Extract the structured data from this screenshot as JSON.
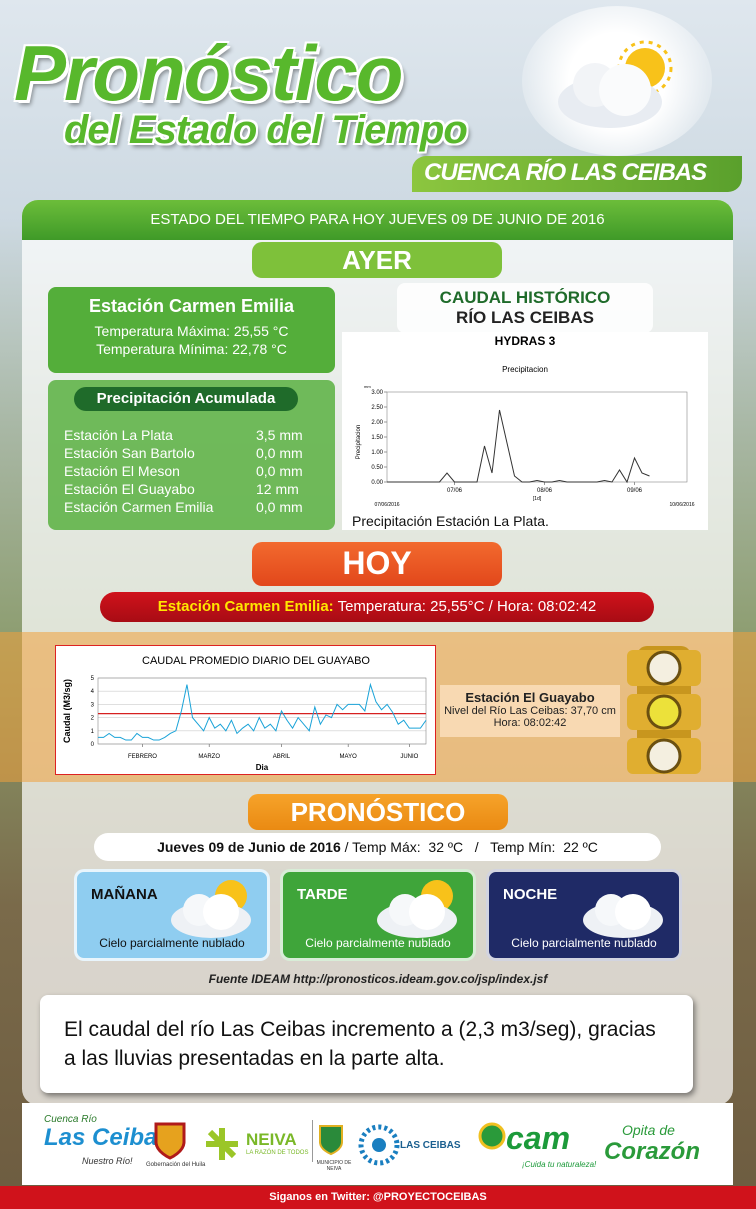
{
  "header": {
    "title": "Pronóstico",
    "subtitle": "del Estado del Tiempo",
    "basin": "CUENCA RÍO LAS CEIBAS"
  },
  "date_bar": "ESTADO DEL TIEMPO  PARA HOY  JUEVES 09 DE JUNIO  DE 2016",
  "ayer": {
    "label": "AYER",
    "station": "Estación Carmen Emilia",
    "temp_max": "Temperatura  Máxima: 25,55 °C",
    "temp_min": "Temperatura  Mínima: 22,78 °C",
    "precip_title": "Precipitación  Acumulada",
    "precip_rows": [
      [
        "Estación  La Plata",
        "3,5 mm"
      ],
      [
        "Estación San Bartolo",
        "0,0 mm"
      ],
      [
        "Estación El Meson",
        "0,0 mm"
      ],
      [
        "Estación El Guayabo",
        "12 mm"
      ],
      [
        "Estación Carmen Emilia",
        "0,0 mm"
      ]
    ]
  },
  "historico": {
    "title": "CAUDAL HISTÓRICO",
    "subtitle": "RÍO LAS CEIBAS",
    "caption": "Precipitación Estación La Plata."
  },
  "precip_chart": {
    "type": "line",
    "header": "HYDRAS 3",
    "title": "Precipitacion",
    "y_label": "Precipitacion",
    "unit": "mm",
    "values": [
      0,
      0,
      0,
      0,
      0,
      0,
      0,
      0,
      0.3,
      0,
      0,
      0,
      0,
      1.2,
      0.3,
      2.4,
      1.3,
      0.2,
      0,
      0,
      0.05,
      0,
      0,
      0.05,
      0,
      0,
      0,
      0,
      0,
      0.05,
      0,
      0.4,
      0,
      0.8,
      0.3,
      0.2
    ],
    "color": "#333333",
    "xlim": [
      0,
      40
    ],
    "xticks": [
      {
        "value": 9,
        "label": "07/06"
      },
      {
        "value": 21,
        "label": "08/06"
      },
      {
        "value": 33,
        "label": "09/06"
      }
    ],
    "x_start": "07/06/2016",
    "x_interval": "[1d]",
    "x_end": "10/06/2016",
    "ylim": [
      0,
      3
    ],
    "yticks": [
      {
        "value": 0,
        "label": "0.00"
      },
      {
        "value": 0.5,
        "label": "0.50"
      },
      {
        "value": 1,
        "label": "1.00"
      },
      {
        "value": 1.5,
        "label": "1.50"
      },
      {
        "value": 2,
        "label": "2.00"
      },
      {
        "value": 2.5,
        "label": "2.50"
      },
      {
        "value": 3,
        "label": "3.00"
      }
    ]
  },
  "hoy": {
    "label": "HOY",
    "station": "Estación Carmen Emilia:",
    "reading": "Temperatura:  25,55°C  / Hora:  08:02:42"
  },
  "caudal_chart": {
    "type": "line",
    "title": "CAUDAL PROMEDIO DIARIO DEL GUAYABO",
    "y_label": "Caudal (M3/sg)",
    "x_label": "Dia",
    "values": [
      0.5,
      0.5,
      0.8,
      0.5,
      0.5,
      0.3,
      0.3,
      0.8,
      0.5,
      0.5,
      0.3,
      0.3,
      0.5,
      0.8,
      1.0,
      2.5,
      4.5,
      2.0,
      1.5,
      1.0,
      2.0,
      1.2,
      1.5,
      1.0,
      1.8,
      0.8,
      1.2,
      1.5,
      1.0,
      2.0,
      1.2,
      1.5,
      1.0,
      2.5,
      1.8,
      1.2,
      2.0,
      1.5,
      1.0,
      2.8,
      1.5,
      2.2,
      2.0,
      3.0,
      2.6,
      3.0,
      3.0,
      3.0,
      2.5,
      4.5,
      3.2,
      2.6,
      3.0,
      2.4,
      1.5,
      1.8,
      1.2,
      1.2,
      1.2,
      1.8
    ],
    "color": "#1aa3d8",
    "reference_line": 2.3,
    "reference_color": "#d62020",
    "xlim": [
      0,
      59
    ],
    "xticks": [
      {
        "value": 8,
        "label": "FEBRERO"
      },
      {
        "value": 20,
        "label": "MARZO"
      },
      {
        "value": 33,
        "label": "ABRIL"
      },
      {
        "value": 45,
        "label": "MAYO"
      },
      {
        "value": 56,
        "label": "JUNIO"
      }
    ],
    "ylim": [
      0,
      5
    ],
    "yticks": [
      0,
      1,
      2,
      3,
      4,
      5
    ],
    "grid": true
  },
  "guayabo": {
    "station": "Estación  El Guayabo",
    "level": "Nivel del Río  Las Ceibas: 37,70 cm",
    "time": "Hora:  08:02:42"
  },
  "pronostico": {
    "label": "PRONÓSTICO",
    "date": "Jueves 09 de Junio de 2016",
    "temps": " / Temp Máx:  32 ºC   /   Temp Mín:  22 ºC",
    "periods": [
      {
        "name": "MAÑANA",
        "sky": "Cielo parcialmente nublado"
      },
      {
        "name": "TARDE",
        "sky": "Cielo parcialmente nublado"
      },
      {
        "name": "NOCHE",
        "sky": "Cielo parcialmente nublado"
      }
    ],
    "source": "Fuente IDEAM  http://pronosticos.ideam.gov.co/jsp/index.jsf"
  },
  "note": "El caudal del río Las Ceibas incremento a (2,3 m3/seg), gracias a las lluvias presentadas en la parte alta.",
  "logos": [
    "Cuenca Río",
    "Las Ceibas",
    "Nuestro Río!",
    "Gobernación del Huila",
    "NEIVA",
    "LA RAZÓN DE TODOS",
    "MUNICIPIO DE NEIVA",
    "LAS CEIBAS",
    "cam",
    "¡Cuida tu naturaleza!",
    "Opita de",
    "Corazón"
  ],
  "footer": "Siganos en Twitter: @PROYECTOCEIBAS"
}
